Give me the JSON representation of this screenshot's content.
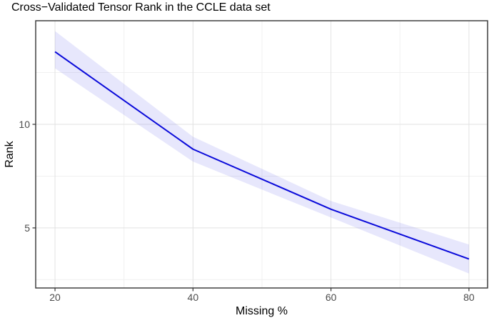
{
  "chart_data": {
    "type": "line",
    "title": "Cross−Validated Tensor Rank in the CCLE data set",
    "xlabel": "Missing %",
    "ylabel": "Rank",
    "x": [
      20,
      40,
      60,
      80
    ],
    "series": [
      {
        "name": "cross-validated-rank",
        "values": [
          13.5,
          8.8,
          5.9,
          3.5
        ]
      },
      {
        "name": "ribbon-upper",
        "values": [
          14.5,
          9.4,
          6.3,
          4.2
        ]
      },
      {
        "name": "ribbon-lower",
        "values": [
          12.7,
          8.2,
          5.5,
          2.8
        ]
      }
    ],
    "x_ticks": [
      20,
      40,
      60,
      80
    ],
    "x_tick_labels": [
      "20",
      "40",
      "60",
      "80"
    ],
    "y_ticks": [
      5,
      10
    ],
    "y_tick_labels": [
      "5",
      "10"
    ],
    "x_minor": [
      30,
      50,
      70
    ],
    "y_minor": [
      2.5,
      7.5,
      12.5
    ],
    "xlim": [
      17.2,
      82.7
    ],
    "ylim": [
      2.1,
      15.0
    ],
    "grid": "on",
    "legend": "none",
    "colors": {
      "line": "#0a0ada",
      "ribbon_fill": "#7b7bec",
      "ribbon_opacity": 0.18,
      "grid_major": "#e2e2e2",
      "grid_minor": "#f0f0f0",
      "panel_border": "#333333",
      "tick_mark": "#333333",
      "tick_label": "#4d4d4d",
      "text": "#000000",
      "background": "#ffffff"
    }
  }
}
